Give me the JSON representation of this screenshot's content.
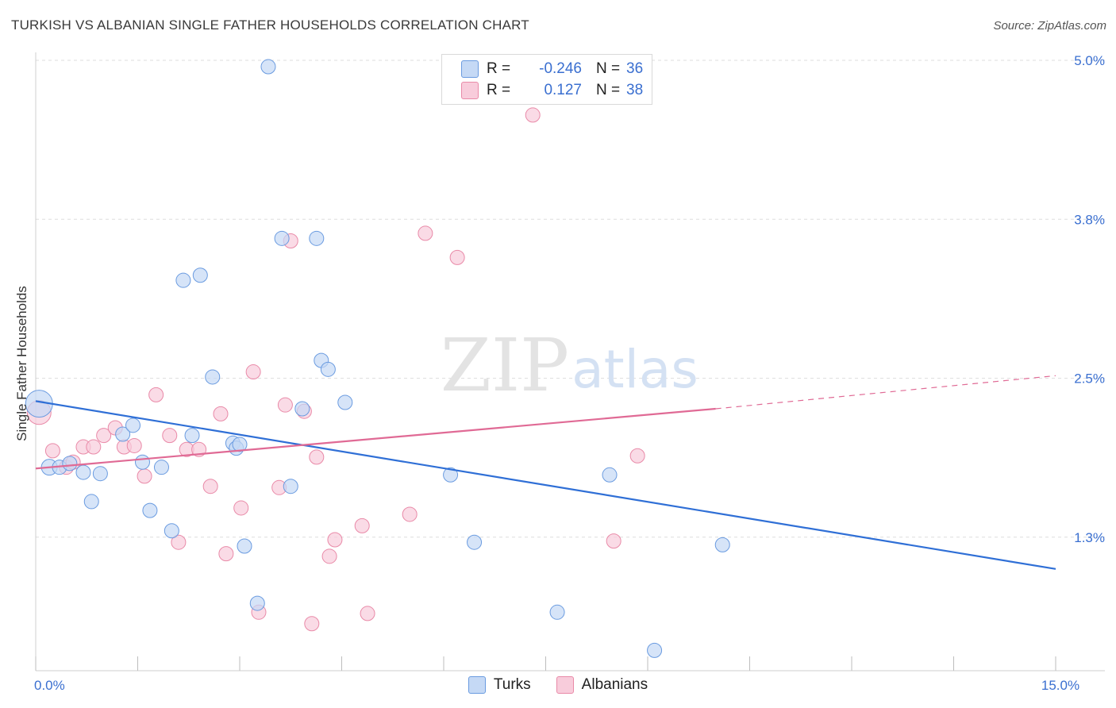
{
  "title": "TURKISH VS ALBANIAN SINGLE FATHER HOUSEHOLDS CORRELATION CHART",
  "source": "Source: ZipAtlas.com",
  "watermark": {
    "zip": "ZIP",
    "atlas": "atlas"
  },
  "colors": {
    "turks": "#6a9be0",
    "turks_fill": "#c5d9f5",
    "turks_line": "#2f6fd6",
    "albanians": "#e98aa8",
    "albanians_fill": "#f8ccdb",
    "albanians_line": "#e06a95",
    "axis_text": "#3a6fd0",
    "grid": "#dedede"
  },
  "legend_top": [
    {
      "series": "turks",
      "r_label": "R =",
      "r_value": "-0.246",
      "n_label": "N =",
      "n_value": "36"
    },
    {
      "series": "albanians",
      "r_label": "R =",
      "r_value": "0.127",
      "n_label": "N =",
      "n_value": "38"
    }
  ],
  "legend_bottom": [
    {
      "series": "turks",
      "label": "Turks"
    },
    {
      "series": "albanians",
      "label": "Albanians"
    }
  ],
  "chart_data": {
    "type": "scatter",
    "title": "TURKISH VS ALBANIAN SINGLE FATHER HOUSEHOLDS CORRELATION CHART",
    "xlabel": "",
    "ylabel": "Single Father Households",
    "xlim": [
      0,
      15
    ],
    "ylim": [
      0.2,
      5.2
    ],
    "x_tick_labels": [
      {
        "value": 0,
        "label": "0.0%"
      },
      {
        "value": 15,
        "label": "15.0%"
      }
    ],
    "y_tick_labels": [
      {
        "value": 1.25,
        "label": "1.3%"
      },
      {
        "value": 2.5,
        "label": "2.5%"
      },
      {
        "value": 3.75,
        "label": "3.8%"
      },
      {
        "value": 5.0,
        "label": "5.0%"
      }
    ],
    "grid": true,
    "legend_position": "top-center",
    "series": [
      {
        "name": "Turks",
        "color": "#6a9be0",
        "points": [
          {
            "x": 0.05,
            "y": 2.3,
            "s": 17
          },
          {
            "x": 0.2,
            "y": 1.8,
            "s": 10
          },
          {
            "x": 0.35,
            "y": 1.8,
            "s": 9
          },
          {
            "x": 0.5,
            "y": 1.83,
            "s": 9
          },
          {
            "x": 0.7,
            "y": 1.76,
            "s": 9
          },
          {
            "x": 0.82,
            "y": 1.53,
            "s": 9
          },
          {
            "x": 0.95,
            "y": 1.75,
            "s": 9
          },
          {
            "x": 1.28,
            "y": 2.06,
            "s": 9
          },
          {
            "x": 1.43,
            "y": 2.13,
            "s": 9
          },
          {
            "x": 1.57,
            "y": 1.84,
            "s": 9
          },
          {
            "x": 1.68,
            "y": 1.46,
            "s": 9
          },
          {
            "x": 1.85,
            "y": 1.8,
            "s": 9
          },
          {
            "x": 2.0,
            "y": 1.3,
            "s": 9
          },
          {
            "x": 2.17,
            "y": 3.27,
            "s": 9
          },
          {
            "x": 2.3,
            "y": 2.05,
            "s": 9
          },
          {
            "x": 2.42,
            "y": 3.31,
            "s": 9
          },
          {
            "x": 2.6,
            "y": 2.51,
            "s": 9
          },
          {
            "x": 2.9,
            "y": 1.99,
            "s": 9
          },
          {
            "x": 2.95,
            "y": 1.95,
            "s": 9
          },
          {
            "x": 3.0,
            "y": 1.98,
            "s": 9
          },
          {
            "x": 3.07,
            "y": 1.18,
            "s": 9
          },
          {
            "x": 3.26,
            "y": 0.73,
            "s": 9
          },
          {
            "x": 3.42,
            "y": 4.95,
            "s": 9
          },
          {
            "x": 3.62,
            "y": 3.6,
            "s": 9
          },
          {
            "x": 3.75,
            "y": 1.65,
            "s": 9
          },
          {
            "x": 3.92,
            "y": 2.26,
            "s": 9
          },
          {
            "x": 4.13,
            "y": 3.6,
            "s": 9
          },
          {
            "x": 4.2,
            "y": 2.64,
            "s": 9
          },
          {
            "x": 4.3,
            "y": 2.57,
            "s": 9
          },
          {
            "x": 4.55,
            "y": 2.31,
            "s": 9
          },
          {
            "x": 6.1,
            "y": 1.74,
            "s": 9
          },
          {
            "x": 6.45,
            "y": 1.21,
            "s": 9
          },
          {
            "x": 7.67,
            "y": 0.66,
            "s": 9
          },
          {
            "x": 8.44,
            "y": 1.74,
            "s": 9
          },
          {
            "x": 9.1,
            "y": 0.36,
            "s": 9
          },
          {
            "x": 10.1,
            "y": 1.19,
            "s": 9
          }
        ],
        "trend": {
          "x": [
            0,
            15
          ],
          "y": [
            2.32,
            1.0
          ],
          "style": "solid"
        }
      },
      {
        "name": "Albanians",
        "color": "#e98aa8",
        "points": [
          {
            "x": 0.05,
            "y": 2.23,
            "s": 15
          },
          {
            "x": 0.25,
            "y": 1.93,
            "s": 9
          },
          {
            "x": 0.45,
            "y": 1.8,
            "s": 9
          },
          {
            "x": 0.55,
            "y": 1.84,
            "s": 9
          },
          {
            "x": 0.7,
            "y": 1.96,
            "s": 9
          },
          {
            "x": 0.85,
            "y": 1.96,
            "s": 9
          },
          {
            "x": 1.0,
            "y": 2.05,
            "s": 9
          },
          {
            "x": 1.17,
            "y": 2.11,
            "s": 9
          },
          {
            "x": 1.3,
            "y": 1.96,
            "s": 9
          },
          {
            "x": 1.45,
            "y": 1.97,
            "s": 9
          },
          {
            "x": 1.6,
            "y": 1.73,
            "s": 9
          },
          {
            "x": 1.77,
            "y": 2.37,
            "s": 9
          },
          {
            "x": 1.97,
            "y": 2.05,
            "s": 9
          },
          {
            "x": 2.1,
            "y": 1.21,
            "s": 9
          },
          {
            "x": 2.22,
            "y": 1.94,
            "s": 9
          },
          {
            "x": 2.4,
            "y": 1.94,
            "s": 9
          },
          {
            "x": 2.57,
            "y": 1.65,
            "s": 9
          },
          {
            "x": 2.72,
            "y": 2.22,
            "s": 9
          },
          {
            "x": 2.8,
            "y": 1.12,
            "s": 9
          },
          {
            "x": 3.02,
            "y": 1.48,
            "s": 9
          },
          {
            "x": 3.2,
            "y": 2.55,
            "s": 9
          },
          {
            "x": 3.28,
            "y": 0.66,
            "s": 9
          },
          {
            "x": 3.58,
            "y": 1.64,
            "s": 9
          },
          {
            "x": 3.67,
            "y": 2.29,
            "s": 9
          },
          {
            "x": 3.75,
            "y": 3.58,
            "s": 9
          },
          {
            "x": 3.95,
            "y": 2.24,
            "s": 9
          },
          {
            "x": 4.06,
            "y": 0.57,
            "s": 9
          },
          {
            "x": 4.13,
            "y": 1.88,
            "s": 9
          },
          {
            "x": 4.32,
            "y": 1.1,
            "s": 9
          },
          {
            "x": 4.4,
            "y": 1.23,
            "s": 9
          },
          {
            "x": 4.8,
            "y": 1.34,
            "s": 9
          },
          {
            "x": 4.88,
            "y": 0.65,
            "s": 9
          },
          {
            "x": 5.5,
            "y": 1.43,
            "s": 9
          },
          {
            "x": 5.73,
            "y": 3.64,
            "s": 9
          },
          {
            "x": 6.2,
            "y": 3.45,
            "s": 9
          },
          {
            "x": 7.31,
            "y": 4.57,
            "s": 9
          },
          {
            "x": 8.5,
            "y": 1.22,
            "s": 9
          },
          {
            "x": 8.85,
            "y": 1.89,
            "s": 9
          }
        ],
        "trend": {
          "x": [
            0,
            10
          ],
          "y": [
            1.79,
            2.26
          ],
          "style": "solid",
          "extension": {
            "x": [
              10,
              15
            ],
            "y": [
              2.26,
              2.52
            ],
            "style": "dashed"
          }
        }
      }
    ]
  }
}
